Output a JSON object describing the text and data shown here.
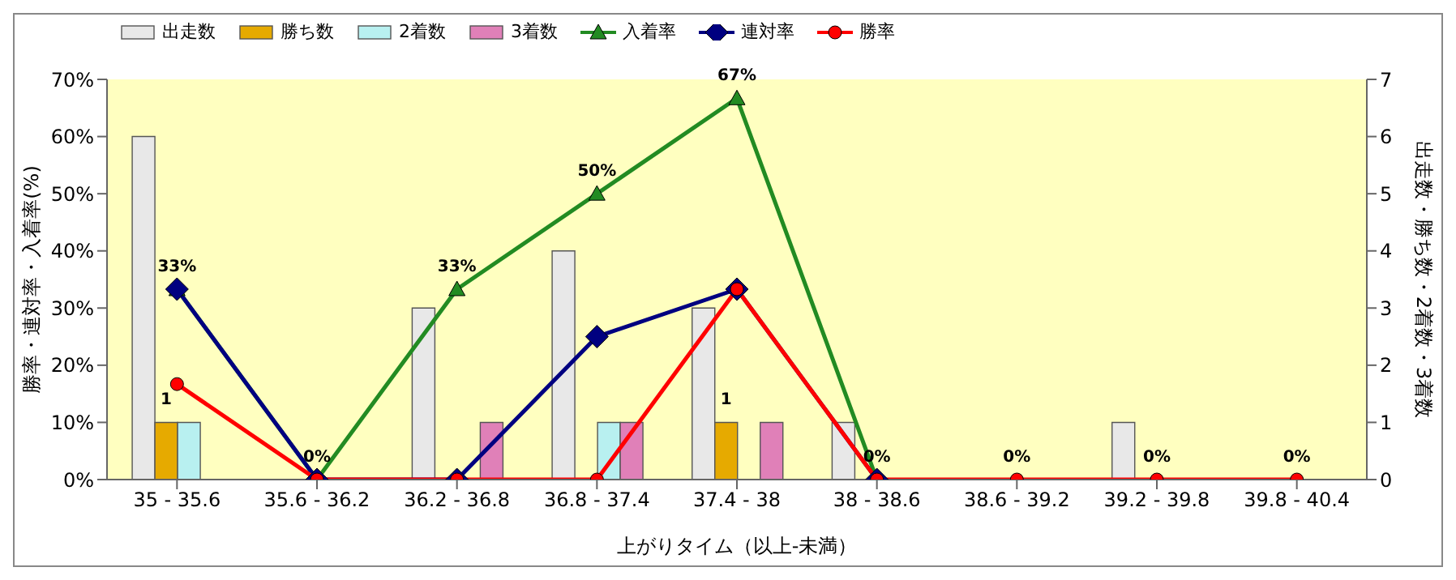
{
  "chart_data": {
    "type": "bar",
    "xlabel": "上がりタイム（以上-未満）",
    "ylabel": "勝率・連対率・入着率(%)",
    "y2label": "出走数・勝ち数・2着数・3着数",
    "categories": [
      "35 - 35.6",
      "35.6 - 36.2",
      "36.2 - 36.8",
      "36.8 - 37.4",
      "37.4 - 38",
      "38 - 38.6",
      "38.6 - 39.2",
      "39.2 - 39.8",
      "39.8 - 40.4"
    ],
    "series": [
      {
        "name": "出走数",
        "axis": "y2",
        "color": "#e8e8e8",
        "values": [
          6,
          0,
          3,
          4,
          3,
          1,
          0,
          1,
          0
        ]
      },
      {
        "name": "勝ち数",
        "axis": "y2",
        "color": "#e6aa00",
        "values": [
          1,
          0,
          0,
          0,
          1,
          0,
          0,
          0,
          0
        ],
        "value_labels": [
          "1",
          null,
          null,
          null,
          "1",
          null,
          null,
          null,
          null
        ]
      },
      {
        "name": "2着数",
        "axis": "y2",
        "color": "#b8f0f0",
        "values": [
          1,
          0,
          0,
          1,
          0,
          0,
          0,
          0,
          0
        ]
      },
      {
        "name": "3着数",
        "axis": "y2",
        "color": "#e080b8",
        "values": [
          0,
          0,
          1,
          1,
          1,
          0,
          0,
          0,
          0
        ]
      },
      {
        "name": "入着率",
        "type": "line",
        "color": "#228b22",
        "marker": "triangle",
        "values": [
          33.3,
          0,
          33.3,
          50,
          66.7,
          0,
          null,
          null,
          null
        ],
        "value_labels": [
          "33%",
          "0%",
          "33%",
          "50%",
          "67%",
          "0%",
          null,
          null,
          null
        ]
      },
      {
        "name": "連対率",
        "type": "line",
        "color": "#000080",
        "marker": "diamond",
        "values": [
          33.3,
          0,
          0,
          25,
          33.3,
          0,
          null,
          null,
          null
        ]
      },
      {
        "name": "勝率",
        "type": "line",
        "color": "#ff0000",
        "marker": "circle",
        "values": [
          16.7,
          0,
          0,
          0,
          33.3,
          0,
          0,
          0,
          0
        ],
        "value_labels": [
          null,
          null,
          null,
          null,
          null,
          null,
          "0%",
          "0%",
          "0%"
        ]
      }
    ],
    "ylim": [
      0,
      70
    ],
    "yticks": [
      {
        "value": 0,
        "label": "0%"
      },
      {
        "value": 10,
        "label": "10%"
      },
      {
        "value": 20,
        "label": "20%"
      },
      {
        "value": 30,
        "label": "30%"
      },
      {
        "value": 40,
        "label": "40%"
      },
      {
        "value": 50,
        "label": "50%"
      },
      {
        "value": 60,
        "label": "60%"
      },
      {
        "value": 70,
        "label": "70%"
      }
    ],
    "y2lim": [
      0,
      7
    ],
    "y2ticks": [
      0,
      1,
      2,
      3,
      4,
      5,
      6,
      7
    ],
    "legend": "top left"
  }
}
